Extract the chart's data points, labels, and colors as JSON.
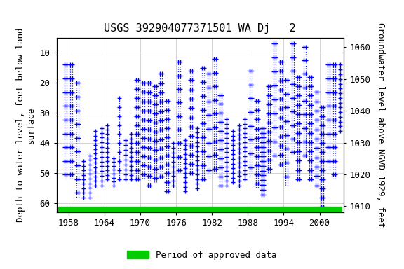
{
  "title": "USGS 392904077371501 WA Dj   2",
  "ylabel_left": "Depth to water level, feet below land\nsurface",
  "ylabel_right": "Groundwater level above NGVD 1929, feet",
  "xlim": [
    1956,
    2004
  ],
  "ylim_left": [
    63,
    5
  ],
  "ylim_right": [
    1008,
    1063
  ],
  "yticks_left": [
    10,
    20,
    30,
    40,
    50,
    60
  ],
  "yticks_right": [
    1010,
    1020,
    1030,
    1040,
    1050,
    1060
  ],
  "xticks": [
    1958,
    1964,
    1970,
    1976,
    1982,
    1988,
    1994,
    2000
  ],
  "marker_color": "blue",
  "line_color": "blue",
  "approved_bar_color": "#00CC00",
  "approved_xstart": 1956.3,
  "approved_xend": 2003.7,
  "legend_label": "Period of approved data",
  "background_color": "#ffffff",
  "plot_bg_color": "#ffffff",
  "grid_color": "#c0c0c0",
  "title_fontsize": 11,
  "label_fontsize": 9,
  "tick_fontsize": 9,
  "data": {
    "1957a": {
      "x": [
        1957.15,
        1957.15
      ],
      "y": [
        14,
        51
      ]
    },
    "1957b": {
      "x": [
        1957.55,
        1957.55
      ],
      "y": [
        20,
        57
      ]
    },
    "1958a": {
      "x": [
        1958.1,
        1958.1
      ],
      "y": [
        14,
        51
      ]
    },
    "1958b": {
      "x": [
        1958.55,
        1958.55
      ],
      "y": [
        18,
        47
      ]
    },
    "1959a": {
      "x": [
        1959.1,
        1959.1
      ],
      "y": [
        28,
        57
      ]
    },
    "1959b": {
      "x": [
        1959.6,
        1959.6
      ],
      "y": [
        32,
        54
      ]
    },
    "1960a": {
      "x": [
        1960.1,
        1960.1
      ],
      "y": [
        47,
        57
      ]
    },
    "1961a": {
      "x": [
        1961.1,
        1961.1
      ],
      "y": [
        45,
        58
      ]
    },
    "1962a": {
      "x": [
        1962.1,
        1962.1
      ],
      "y": [
        37,
        53
      ]
    },
    "1963a": {
      "x": [
        1963.1,
        1963.1
      ],
      "y": [
        36,
        54
      ]
    },
    "1964a": {
      "x": [
        1964.1,
        1964.1
      ],
      "y": [
        35,
        52
      ]
    },
    "1965a": {
      "x": [
        1965.1,
        1965.1
      ],
      "y": [
        46,
        54
      ]
    },
    "1966a": {
      "x": [
        1966.1,
        1966.1
      ],
      "y": [
        26,
        51
      ]
    },
    "1967a": {
      "x": [
        1967.1,
        1967.1
      ],
      "y": [
        40,
        52
      ]
    },
    "1968a": {
      "x": [
        1968.1,
        1968.1
      ],
      "y": [
        38,
        52
      ]
    },
    "1969a": {
      "x": [
        1969.1,
        1969.1
      ],
      "y": [
        20,
        51
      ]
    },
    "1969b": {
      "x": [
        1969.6,
        1969.6
      ],
      "y": [
        25,
        51
      ]
    },
    "1970a": {
      "x": [
        1970.1,
        1970.1
      ],
      "y": [
        30,
        51
      ]
    },
    "1970b": {
      "x": [
        1970.55,
        1970.55
      ],
      "y": [
        21,
        50
      ]
    },
    "1971a": {
      "x": [
        1971.1,
        1971.1
      ],
      "y": [
        21,
        54
      ]
    },
    "1971b": {
      "x": [
        1971.6,
        1971.6
      ],
      "y": [
        26,
        51
      ]
    },
    "1972a": {
      "x": [
        1972.1,
        1972.1
      ],
      "y": [
        22,
        53
      ]
    },
    "1972b": {
      "x": [
        1972.6,
        1972.6
      ],
      "y": [
        27,
        51
      ]
    },
    "1973a": {
      "x": [
        1973.1,
        1973.1
      ],
      "y": [
        18,
        50
      ]
    },
    "1973b": {
      "x": [
        1973.6,
        1973.6
      ],
      "y": [
        24,
        50
      ]
    },
    "1974a": {
      "x": [
        1974.1,
        1974.1
      ],
      "y": [
        27,
        56
      ]
    },
    "1974b": {
      "x": [
        1974.6,
        1974.6
      ],
      "y": [
        32,
        52
      ]
    },
    "1975a": {
      "x": [
        1975.1,
        1975.1
      ],
      "y": [
        41,
        54
      ]
    },
    "1976a": {
      "x": [
        1976.1,
        1976.1
      ],
      "y": [
        14,
        48
      ]
    },
    "1976b": {
      "x": [
        1976.6,
        1976.6
      ],
      "y": [
        20,
        48
      ]
    },
    "1977a": {
      "x": [
        1977.1,
        1977.1
      ],
      "y": [
        40,
        55
      ]
    },
    "1978a": {
      "x": [
        1978.1,
        1978.1
      ],
      "y": [
        17,
        49
      ]
    },
    "1978b": {
      "x": [
        1978.6,
        1978.6
      ],
      "y": [
        23,
        48
      ]
    },
    "1979a": {
      "x": [
        1979.1,
        1979.1
      ],
      "y": [
        36,
        54
      ]
    },
    "1980a": {
      "x": [
        1980.1,
        1980.1
      ],
      "y": [
        16,
        51
      ]
    },
    "1980b": {
      "x": [
        1980.6,
        1980.6
      ],
      "y": [
        22,
        50
      ]
    },
    "1981a": {
      "x": [
        1981.1,
        1981.1
      ],
      "y": [
        18,
        51
      ]
    },
    "1981b": {
      "x": [
        1981.6,
        1981.6
      ],
      "y": [
        23,
        50
      ]
    },
    "1982a": {
      "x": [
        1982.1,
        1982.1
      ],
      "y": [
        13,
        49
      ]
    },
    "1982b": {
      "x": [
        1982.6,
        1982.6
      ],
      "y": [
        18,
        48
      ]
    },
    "1983a": {
      "x": [
        1983.1,
        1983.1
      ],
      "y": [
        25,
        53
      ]
    },
    "1983b": {
      "x": [
        1983.6,
        1983.6
      ],
      "y": [
        30,
        51
      ]
    },
    "1984a": {
      "x": [
        1984.1,
        1984.1
      ],
      "y": [
        33,
        53
      ]
    },
    "1985a": {
      "x": [
        1985.1,
        1985.1
      ],
      "y": [
        37,
        52
      ]
    },
    "1986a": {
      "x": [
        1986.1,
        1986.1
      ],
      "y": [
        35,
        53
      ]
    },
    "1987a": {
      "x": [
        1987.1,
        1987.1
      ],
      "y": [
        33,
        51
      ]
    },
    "1988a": {
      "x": [
        1988.1,
        1988.1
      ],
      "y": [
        17,
        50
      ]
    },
    "1988b": {
      "x": [
        1988.6,
        1988.6
      ],
      "y": [
        23,
        49
      ]
    },
    "1989a": {
      "x": [
        1989.1,
        1989.1
      ],
      "y": [
        27,
        54
      ]
    },
    "1989b": {
      "x": [
        1989.6,
        1989.6
      ],
      "y": [
        32,
        52
      ]
    },
    "1990a": {
      "x": [
        1990.1,
        1990.1
      ],
      "y": [
        36,
        56
      ]
    },
    "1990b": {
      "x": [
        1990.6,
        1990.6
      ],
      "y": [
        41,
        55
      ]
    },
    "1991a": {
      "x": [
        1991.1,
        1991.1
      ],
      "y": [
        22,
        49
      ]
    },
    "1991b": {
      "x": [
        1991.6,
        1991.6
      ],
      "y": [
        27,
        48
      ]
    },
    "1992a": {
      "x": [
        1992.1,
        1992.1
      ],
      "y": [
        8,
        44
      ]
    },
    "1992b": {
      "x": [
        1992.6,
        1992.6
      ],
      "y": [
        13,
        43
      ]
    },
    "1993a": {
      "x": [
        1993.1,
        1993.1
      ],
      "y": [
        14,
        47
      ]
    },
    "1993b": {
      "x": [
        1993.6,
        1993.6
      ],
      "y": [
        19,
        46
      ]
    },
    "1994a": {
      "x": [
        1994.1,
        1994.1
      ],
      "y": [
        20,
        53
      ]
    },
    "1994b": {
      "x": [
        1994.6,
        1994.6
      ],
      "y": [
        25,
        52
      ]
    },
    "1995a": {
      "x": [
        1995.1,
        1995.1
      ],
      "y": [
        8,
        43
      ]
    },
    "1995b": {
      "x": [
        1995.6,
        1995.6
      ],
      "y": [
        13,
        42
      ]
    },
    "1996a": {
      "x": [
        1996.1,
        1996.1
      ],
      "y": [
        19,
        51
      ]
    },
    "1996b": {
      "x": [
        1996.6,
        1996.6
      ],
      "y": [
        24,
        50
      ]
    },
    "1997a": {
      "x": [
        1997.1,
        1997.1
      ],
      "y": [
        9,
        44
      ]
    },
    "1997b": {
      "x": [
        1997.6,
        1997.6
      ],
      "y": [
        14,
        43
      ]
    },
    "1998a": {
      "x": [
        1998.1,
        1998.1
      ],
      "y": [
        19,
        51
      ]
    },
    "1998b": {
      "x": [
        1998.6,
        1998.6
      ],
      "y": [
        24,
        50
      ]
    },
    "1999a": {
      "x": [
        1999.1,
        1999.1
      ],
      "y": [
        24,
        53
      ]
    },
    "1999b": {
      "x": [
        1999.6,
        1999.6
      ],
      "y": [
        29,
        52
      ]
    },
    "2000a": {
      "x": [
        2000.1,
        2000.1
      ],
      "y": [
        29,
        60
      ]
    },
    "2000b": {
      "x": [
        2000.6,
        2000.6
      ],
      "y": [
        35,
        54
      ]
    },
    "2001a": {
      "x": [
        2001.1,
        2001.1
      ],
      "y": [
        15,
        48
      ]
    },
    "2001b": {
      "x": [
        2001.6,
        2001.6
      ],
      "y": [
        20,
        47
      ]
    },
    "2002a": {
      "x": [
        2002.1,
        2002.1
      ],
      "y": [
        15,
        51
      ]
    },
    "2002b": {
      "x": [
        2002.6,
        2002.6
      ],
      "y": [
        20,
        50
      ]
    },
    "2003a": {
      "x": [
        2003.1,
        2003.1
      ],
      "y": [
        15,
        36
      ]
    }
  }
}
